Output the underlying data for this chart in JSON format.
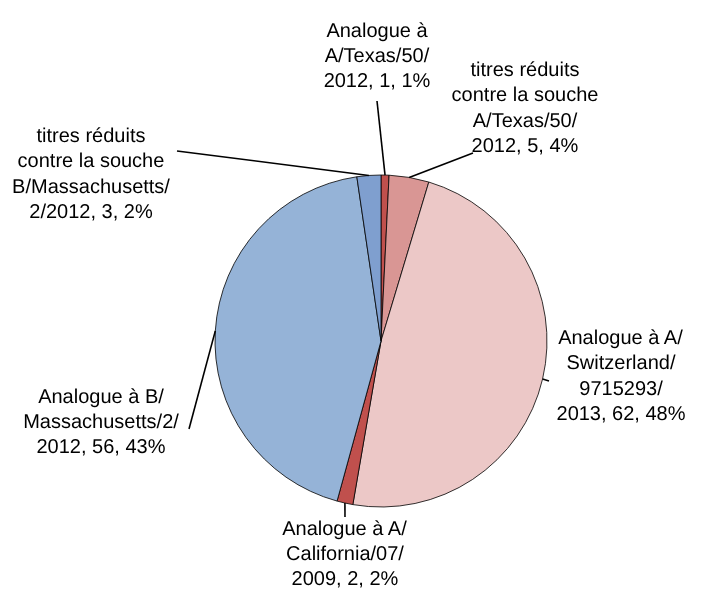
{
  "chart_data": {
    "type": "pie",
    "categories": [
      "Analogue à A/Texas/50/2012",
      "titres réduits contre la souche A/Texas/50/2012",
      "Analogue à A/Switzerland/9715293/2013",
      "Analogue à A/California/07/2009",
      "Analogue à B/Massachusetts/2/2012",
      "titres réduits contre la souche B/Massachusetts/2/2012"
    ],
    "values": [
      1,
      5,
      62,
      2,
      56,
      3
    ],
    "value_labels": [
      "1, 1%",
      "5, 4%",
      "62, 48%",
      "2, 2%",
      "56, 43%",
      "3, 2%"
    ],
    "colors": [
      "#c0504d",
      "#d99694",
      "#ecc8c7",
      "#c0504d",
      "#95b3d7",
      "#7f9fcf"
    ]
  }
}
